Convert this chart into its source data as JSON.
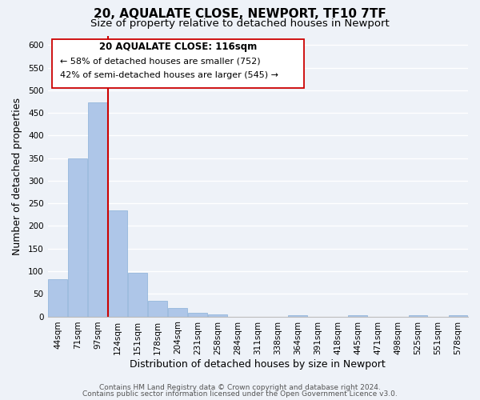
{
  "title": "20, AQUALATE CLOSE, NEWPORT, TF10 7TF",
  "subtitle": "Size of property relative to detached houses in Newport",
  "xlabel": "Distribution of detached houses by size in Newport",
  "ylabel": "Number of detached properties",
  "bar_labels": [
    "44sqm",
    "71sqm",
    "97sqm",
    "124sqm",
    "151sqm",
    "178sqm",
    "204sqm",
    "231sqm",
    "258sqm",
    "284sqm",
    "311sqm",
    "338sqm",
    "364sqm",
    "391sqm",
    "418sqm",
    "445sqm",
    "471sqm",
    "498sqm",
    "525sqm",
    "551sqm",
    "578sqm"
  ],
  "bar_heights": [
    83,
    349,
    474,
    235,
    97,
    35,
    19,
    8,
    5,
    0,
    0,
    0,
    2,
    0,
    0,
    2,
    0,
    0,
    2,
    0,
    2
  ],
  "bar_color": "#aec6e8",
  "vline_x_index": 3,
  "vline_color": "#cc0000",
  "ylim": [
    0,
    620
  ],
  "yticks": [
    0,
    50,
    100,
    150,
    200,
    250,
    300,
    350,
    400,
    450,
    500,
    550,
    600
  ],
  "annotation_title": "20 AQUALATE CLOSE: 116sqm",
  "annotation_line1": "← 58% of detached houses are smaller (752)",
  "annotation_line2": "42% of semi-detached houses are larger (545) →",
  "footer1": "Contains HM Land Registry data © Crown copyright and database right 2024.",
  "footer2": "Contains public sector information licensed under the Open Government Licence v3.0.",
  "background_color": "#eef2f8",
  "grid_color": "#ffffff",
  "title_fontsize": 11,
  "subtitle_fontsize": 9.5,
  "axis_fontsize": 9,
  "tick_fontsize": 7.5,
  "footer_fontsize": 6.5
}
